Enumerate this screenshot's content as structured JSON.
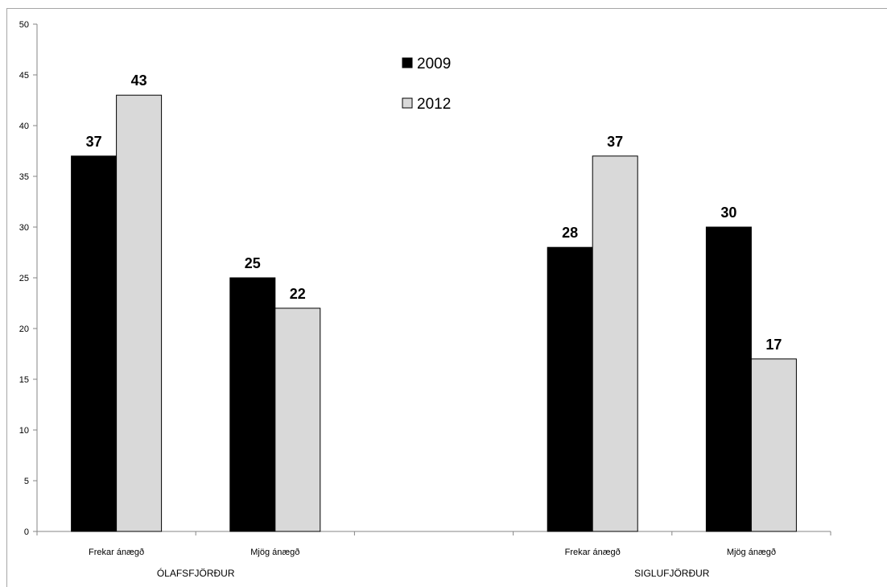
{
  "chart_data": {
    "type": "bar",
    "categories": [
      "Frekar ánægð",
      "Mjög ánægð",
      "",
      "Frekar ánægð",
      "Mjög ánægð"
    ],
    "groups": [
      {
        "label": "ÓLAFSFJÖRÐUR",
        "categories": [
          "Frekar ánægð",
          "Mjög ánægð"
        ]
      },
      {
        "label": "SIGLUFJÖRÐUR",
        "categories": [
          "Frekar ánægð",
          "Mjög ánægð"
        ]
      }
    ],
    "series": [
      {
        "name": "2009",
        "color": "#000000",
        "values": [
          37,
          25,
          null,
          28,
          30
        ]
      },
      {
        "name": "2012",
        "color": "#d9d9d9",
        "values": [
          43,
          22,
          null,
          37,
          17
        ]
      }
    ],
    "title": "",
    "xlabel": "",
    "ylabel": "",
    "ylim": [
      0,
      50
    ],
    "yticks": [
      "0",
      "5",
      "10",
      "15",
      "20",
      "25",
      "30",
      "35",
      "40",
      "45",
      "50"
    ],
    "grid": false,
    "legend_position": "top-center"
  }
}
